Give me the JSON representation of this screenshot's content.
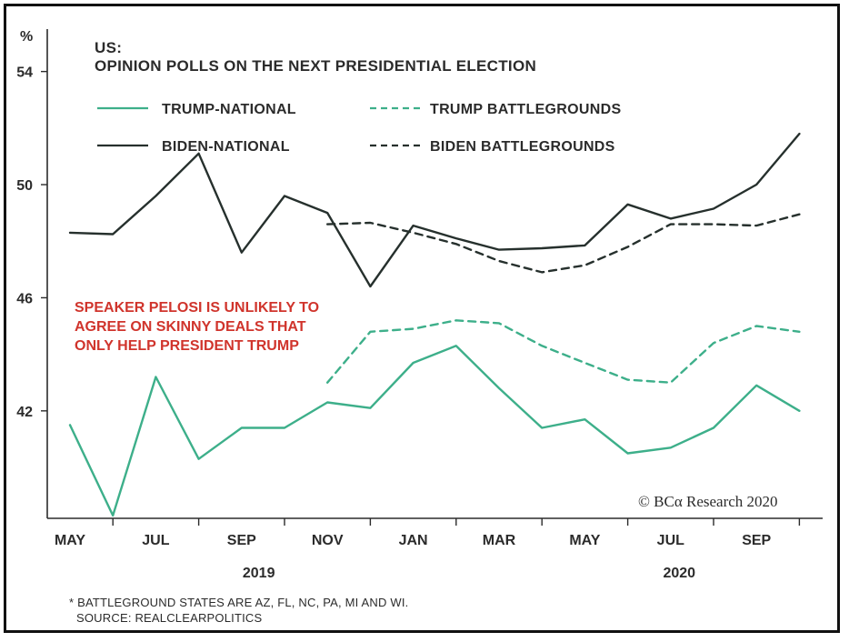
{
  "chart_data": {
    "type": "line",
    "title": "US:",
    "subtitle": "OPINION POLLS ON THE NEXT PRESIDENTIAL ELECTION",
    "ylabel": "%",
    "ylim": [
      38.2,
      55.5
    ],
    "yticks": [
      42,
      46,
      50,
      54
    ],
    "xlim": [
      0,
      17.5
    ],
    "xticks": [
      {
        "i": 0,
        "label": "MAY"
      },
      {
        "i": 2,
        "label": "JUL"
      },
      {
        "i": 4,
        "label": "SEP"
      },
      {
        "i": 6,
        "label": "NOV"
      },
      {
        "i": 8,
        "label": "JAN"
      },
      {
        "i": 10,
        "label": "MAR"
      },
      {
        "i": 12,
        "label": "MAY"
      },
      {
        "i": 14,
        "label": "JUL"
      },
      {
        "i": 16,
        "label": "SEP"
      }
    ],
    "year_labels": [
      {
        "i": 4.4,
        "label": "2019"
      },
      {
        "i": 14.2,
        "label": "2020"
      }
    ],
    "series": [
      {
        "name": "TRUMP-NATIONAL",
        "color": "#3daf8a",
        "dash": false,
        "points": [
          [
            0,
            41.5
          ],
          [
            1,
            38.3
          ],
          [
            2,
            43.2
          ],
          [
            3,
            40.3
          ],
          [
            4,
            41.4
          ],
          [
            5,
            41.4
          ],
          [
            6,
            42.3
          ],
          [
            7,
            42.1
          ],
          [
            8,
            43.7
          ],
          [
            9,
            44.3
          ],
          [
            10,
            42.8
          ],
          [
            11,
            41.4
          ],
          [
            12,
            41.7
          ],
          [
            13,
            40.5
          ],
          [
            14,
            40.7
          ],
          [
            15,
            41.4
          ],
          [
            16,
            42.9
          ],
          [
            17,
            42
          ]
        ]
      },
      {
        "name": "BIDEN-NATIONAL",
        "color": "#26302d",
        "dash": false,
        "points": [
          [
            0,
            48.3
          ],
          [
            1,
            48.25
          ],
          [
            2,
            49.6
          ],
          [
            3,
            51.1
          ],
          [
            4,
            47.6
          ],
          [
            5,
            49.6
          ],
          [
            6,
            49
          ],
          [
            7,
            46.4
          ],
          [
            8,
            48.55
          ],
          [
            9,
            48.1
          ],
          [
            10,
            47.7
          ],
          [
            11,
            47.75
          ],
          [
            12,
            47.85
          ],
          [
            13,
            49.3
          ],
          [
            14,
            48.8
          ],
          [
            15,
            49.15
          ],
          [
            16,
            50
          ],
          [
            17,
            51.8
          ]
        ]
      },
      {
        "name": "TRUMP BATTLEGROUNDS",
        "color": "#3daf8a",
        "dash": true,
        "points": [
          [
            6,
            43
          ],
          [
            7,
            44.8
          ],
          [
            8,
            44.9
          ],
          [
            9,
            45.2
          ],
          [
            10,
            45.1
          ],
          [
            11,
            44.3
          ],
          [
            12,
            43.7
          ],
          [
            13,
            43.1
          ],
          [
            14,
            43
          ],
          [
            15,
            44.4
          ],
          [
            16,
            45
          ],
          [
            17,
            44.8
          ]
        ]
      },
      {
        "name": "BIDEN BATTLEGROUNDS",
        "color": "#26302d",
        "dash": true,
        "points": [
          [
            6,
            48.6
          ],
          [
            7,
            48.65
          ],
          [
            8,
            48.3
          ],
          [
            9,
            47.9
          ],
          [
            10,
            47.3
          ],
          [
            11,
            46.9
          ],
          [
            12,
            47.15
          ],
          [
            13,
            47.8
          ],
          [
            14,
            48.6
          ],
          [
            15,
            48.6
          ],
          [
            16,
            48.55
          ],
          [
            17,
            48.95
          ]
        ]
      }
    ],
    "annotation": [
      "SPEAKER PELOSI IS UNLIKELY TO",
      "AGREE ON SKINNY DEALS THAT",
      "ONLY HELP PRESIDENT TRUMP"
    ],
    "annotation_color": "#d0342c",
    "footnote": [
      "* BATTLEGROUND  STATES  ARE AZ, FL, NC, PA, MI AND WI.",
      "SOURCE:  REALCLEARPOLITICS"
    ],
    "credit": "© BCα Research 2020",
    "legend_placement": "top-left",
    "grid": false
  }
}
